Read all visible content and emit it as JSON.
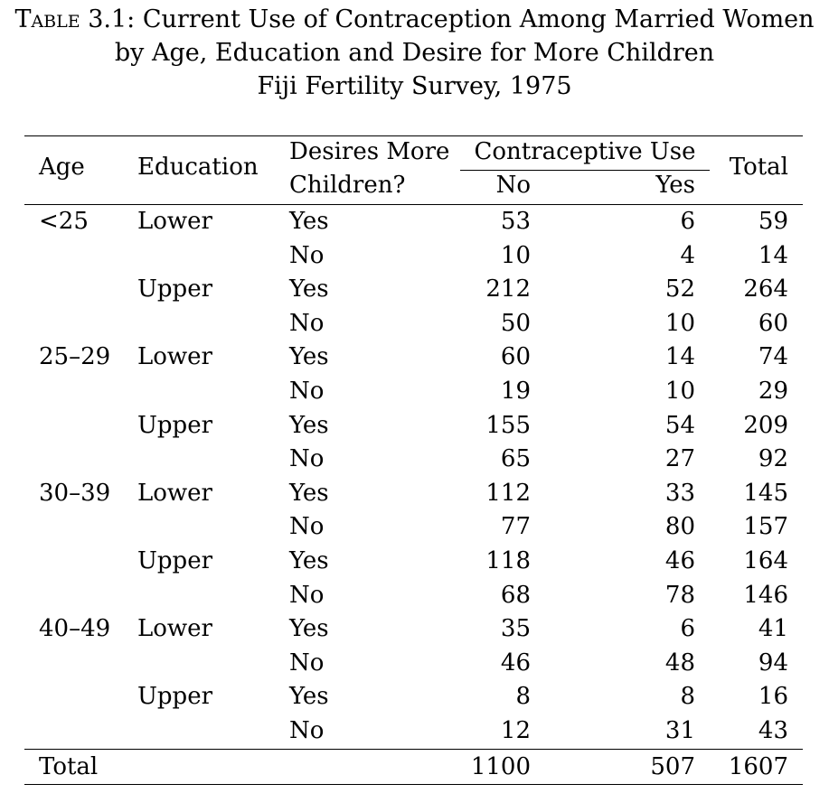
{
  "caption": {
    "label": "Table 3.1:",
    "title_line1": "Current Use of Contraception Among Married Women",
    "title_line2": "by Age, Education and Desire for More Children",
    "title_line3": "Fiji Fertility Survey, 1975"
  },
  "header": {
    "age": "Age",
    "education": "Education",
    "desires_line1": "Desires More",
    "desires_line2": "Children?",
    "contraceptive_use": "Contraceptive Use",
    "no": "No",
    "yes": "Yes",
    "total": "Total"
  },
  "rows": [
    {
      "age": "<25",
      "education": "Lower",
      "desires": "Yes",
      "no": "53",
      "yes": "6",
      "total": "59"
    },
    {
      "age": "",
      "education": "",
      "desires": "No",
      "no": "10",
      "yes": "4",
      "total": "14"
    },
    {
      "age": "",
      "education": "Upper",
      "desires": "Yes",
      "no": "212",
      "yes": "52",
      "total": "264"
    },
    {
      "age": "",
      "education": "",
      "desires": "No",
      "no": "50",
      "yes": "10",
      "total": "60"
    },
    {
      "age": "25–29",
      "education": "Lower",
      "desires": "Yes",
      "no": "60",
      "yes": "14",
      "total": "74"
    },
    {
      "age": "",
      "education": "",
      "desires": "No",
      "no": "19",
      "yes": "10",
      "total": "29"
    },
    {
      "age": "",
      "education": "Upper",
      "desires": "Yes",
      "no": "155",
      "yes": "54",
      "total": "209"
    },
    {
      "age": "",
      "education": "",
      "desires": "No",
      "no": "65",
      "yes": "27",
      "total": "92"
    },
    {
      "age": "30–39",
      "education": "Lower",
      "desires": "Yes",
      "no": "112",
      "yes": "33",
      "total": "145"
    },
    {
      "age": "",
      "education": "",
      "desires": "No",
      "no": "77",
      "yes": "80",
      "total": "157"
    },
    {
      "age": "",
      "education": "Upper",
      "desires": "Yes",
      "no": "118",
      "yes": "46",
      "total": "164"
    },
    {
      "age": "",
      "education": "",
      "desires": "No",
      "no": "68",
      "yes": "78",
      "total": "146"
    },
    {
      "age": "40–49",
      "education": "Lower",
      "desires": "Yes",
      "no": "35",
      "yes": "6",
      "total": "41"
    },
    {
      "age": "",
      "education": "",
      "desires": "No",
      "no": "46",
      "yes": "48",
      "total": "94"
    },
    {
      "age": "",
      "education": "Upper",
      "desires": "Yes",
      "no": "8",
      "yes": "8",
      "total": "16"
    },
    {
      "age": "",
      "education": "",
      "desires": "No",
      "no": "12",
      "yes": "31",
      "total": "43"
    }
  ],
  "totals": {
    "label": "Total",
    "no": "1100",
    "yes": "507",
    "total": "1607"
  }
}
